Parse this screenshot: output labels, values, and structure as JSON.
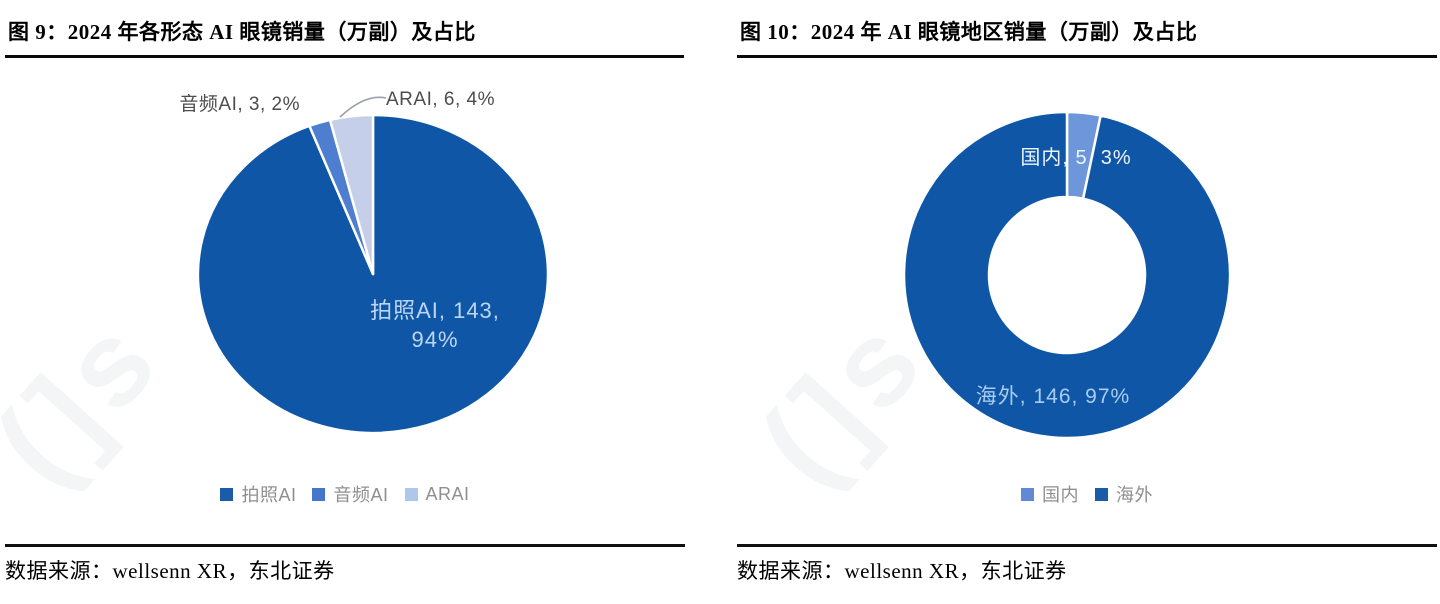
{
  "chart_data": [
    {
      "type": "pie",
      "title": "图 9：2024 年各形态 AI 眼镜销量（万副）及占比",
      "unit": "万副",
      "categories": [
        "拍照AI",
        "音频AI",
        "ARAI"
      ],
      "values": [
        143,
        3,
        6
      ],
      "percents": [
        "94%",
        "2%",
        "4%"
      ],
      "colors": [
        "#0F57A6",
        "#4D7ECF",
        "#C6CFE9"
      ],
      "legend_position": "bottom-center",
      "legend_items": [
        {
          "label": "拍照AI",
          "color": "#1A5CA8"
        },
        {
          "label": "音频AI",
          "color": "#4377CB"
        },
        {
          "label": "ARAI",
          "color": "#AFC8EA"
        }
      ],
      "callouts": {
        "audio_ai": "音频AI, 3, 2%",
        "ar_ai": "ARAI, 6, 4%",
        "photo_ai_line1": "拍照AI, 143,",
        "photo_ai_line2": "94%"
      },
      "source": "数据来源：wellsenn XR，东北证券"
    },
    {
      "type": "donut",
      "title": "图 10：2024 年 AI 眼镜地区销量（万副）及占比",
      "unit": "万副",
      "categories": [
        "国内",
        "海外"
      ],
      "values": [
        5,
        146
      ],
      "percents": [
        "3%",
        "97%"
      ],
      "colors": [
        "#6E96DA",
        "#0F57A6"
      ],
      "legend_position": "bottom-center",
      "legend_items": [
        {
          "label": "国内",
          "color": "#6189D4"
        },
        {
          "label": "海外",
          "color": "#1A5CA8"
        }
      ],
      "callouts": {
        "domestic": "国内, 5, 3%",
        "overseas": "海外, 146, 97%"
      },
      "source": "数据来源：wellsenn XR，东北证券"
    }
  ],
  "watermark": "(]s"
}
